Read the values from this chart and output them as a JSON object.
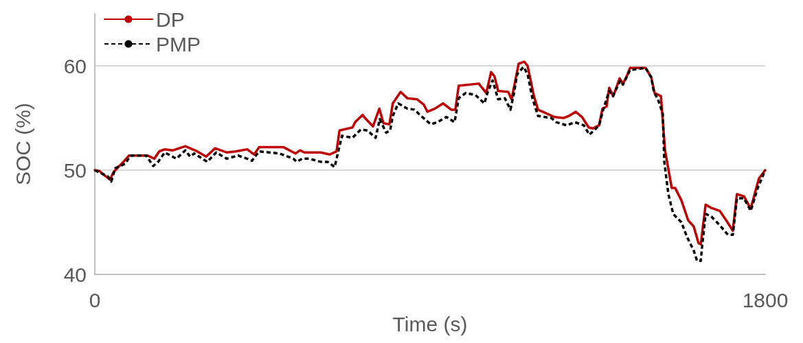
{
  "chart_data": {
    "type": "line",
    "xlabel": "Time (s)",
    "ylabel": "SOC (%)",
    "xlim": [
      0,
      1800
    ],
    "xticks": [
      0,
      1800
    ],
    "ylim": [
      40,
      65
    ],
    "yticks": [
      40,
      50,
      60
    ],
    "grid": "y",
    "legend": "top left",
    "marker": "none",
    "series": [
      {
        "name": "DP",
        "color": "#c00000",
        "line_style": "solid",
        "x": [
          0,
          13,
          26,
          41,
          50,
          63,
          77,
          92,
          142,
          160,
          173,
          188,
          210,
          243,
          275,
          299,
          323,
          354,
          378,
          409,
          428,
          441,
          507,
          539,
          551,
          563,
          607,
          631,
          649,
          657,
          692,
          699,
          719,
          728,
          747,
          764,
          775,
          791,
          800,
          821,
          839,
          865,
          883,
          893,
          913,
          935,
          957,
          968,
          977,
          1031,
          1051,
          1064,
          1073,
          1083,
          1110,
          1119,
          1129,
          1138,
          1153,
          1162,
          1179,
          1190,
          1234,
          1258,
          1273,
          1291,
          1308,
          1326,
          1337,
          1354,
          1363,
          1374,
          1381,
          1392,
          1409,
          1418,
          1427,
          1437,
          1479,
          1494,
          1503,
          1520,
          1531,
          1549,
          1558,
          1575,
          1593,
          1608,
          1621,
          1627,
          1640,
          1654,
          1678,
          1695,
          1713,
          1724,
          1743,
          1761,
          1783,
          1800
        ],
        "values": [
          50,
          49.9,
          49.5,
          49.1,
          49.8,
          50.3,
          50.8,
          51.4,
          51.4,
          51.1,
          51.8,
          52.0,
          51.9,
          52.3,
          51.8,
          51.3,
          52.1,
          51.7,
          51.8,
          52.0,
          51.5,
          52.2,
          52.2,
          51.6,
          51.9,
          51.7,
          51.7,
          51.5,
          51.8,
          53.8,
          54.1,
          54.6,
          55.3,
          54.9,
          54.2,
          55.9,
          54.5,
          54.4,
          56.4,
          57.5,
          56.9,
          56.8,
          56.3,
          55.6,
          55.9,
          56.4,
          55.8,
          55.8,
          58.1,
          58.3,
          57.4,
          59.4,
          59.0,
          57.6,
          57.5,
          56.8,
          58.6,
          60.2,
          60.4,
          60.0,
          57.1,
          55.8,
          55.1,
          55.0,
          55.2,
          55.6,
          55.1,
          54.1,
          54.0,
          54.3,
          55.9,
          56.1,
          57.9,
          57.1,
          58.8,
          58.3,
          58.9,
          59.8,
          59.8,
          58.9,
          57.4,
          57.1,
          51.9,
          48.3,
          48.3,
          47.1,
          45.2,
          44.6,
          43.0,
          42.9,
          46.7,
          46.4,
          46.1,
          45.2,
          44.2,
          47.7,
          47.5,
          46.3,
          49.2,
          50.0
        ]
      },
      {
        "name": "PMP",
        "color": "#000000",
        "line_style": "dashed",
        "x": [
          0,
          35,
          44,
          55,
          81,
          96,
          138,
          157,
          170,
          188,
          219,
          243,
          256,
          267,
          280,
          302,
          326,
          354,
          385,
          409,
          422,
          441,
          496,
          533,
          542,
          557,
          575,
          607,
          625,
          644,
          655,
          664,
          692,
          714,
          732,
          754,
          765,
          782,
          793,
          800,
          815,
          839,
          858,
          876,
          902,
          920,
          944,
          966,
          977,
          996,
          1022,
          1046,
          1055,
          1068,
          1083,
          1101,
          1116,
          1125,
          1134,
          1151,
          1162,
          1175,
          1190,
          1226,
          1239,
          1267,
          1289,
          1313,
          1328,
          1354,
          1365,
          1381,
          1391,
          1411,
          1418,
          1437,
          1479,
          1494,
          1501,
          1512,
          1525,
          1529,
          1540,
          1553,
          1575,
          1590,
          1608,
          1617,
          1627,
          1630,
          1640,
          1654,
          1676,
          1700,
          1713,
          1724,
          1743,
          1761,
          1780,
          1800
        ],
        "values": [
          50,
          49.4,
          48.9,
          50.2,
          50.6,
          51.4,
          51.4,
          50.4,
          50.8,
          51.7,
          51.1,
          51.9,
          51.3,
          51.6,
          51.3,
          50.8,
          51.7,
          51.1,
          51.4,
          51.1,
          50.9,
          51.8,
          51.6,
          51.1,
          50.8,
          51.1,
          51.1,
          50.8,
          50.8,
          50.3,
          52.0,
          53.3,
          53.1,
          53.9,
          53.8,
          53.1,
          54.9,
          53.6,
          53.8,
          55.2,
          56.4,
          55.9,
          55.8,
          55.2,
          54.4,
          54.6,
          55.1,
          54.6,
          56.9,
          57.4,
          57.2,
          56.4,
          57.5,
          58.6,
          56.8,
          56.9,
          55.8,
          57.3,
          59.2,
          59.9,
          59.2,
          56.9,
          55.2,
          55.0,
          54.6,
          54.3,
          54.6,
          54.3,
          53.4,
          54.3,
          55.8,
          57.6,
          57.1,
          58.6,
          58.2,
          59.6,
          59.8,
          58.9,
          57.5,
          56.8,
          55.4,
          50.8,
          47.7,
          45.8,
          45.0,
          43.6,
          42.3,
          41.3,
          41.3,
          42.5,
          45.8,
          45.6,
          44.8,
          43.8,
          43.8,
          47.3,
          47.3,
          46.1,
          48.3,
          50.0
        ]
      }
    ]
  }
}
